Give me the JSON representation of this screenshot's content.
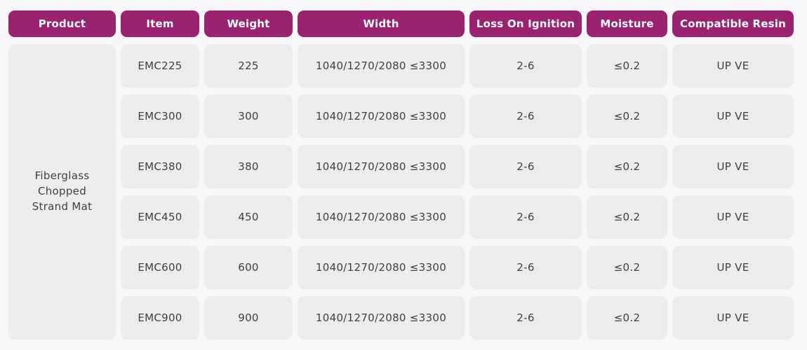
{
  "colors": {
    "page_bg": "#f7f7f9",
    "header_bg": "#9b2271",
    "header_text": "#ffffff",
    "cell_bg": "#ececec",
    "cell_text": "#414141"
  },
  "table": {
    "columns": [
      {
        "label": "Product"
      },
      {
        "label": "Item"
      },
      {
        "label": "Weight"
      },
      {
        "label": "Width"
      },
      {
        "label": "Loss On Ignition"
      },
      {
        "label": "Moisture"
      },
      {
        "label": "Compatible Resin"
      }
    ],
    "product_group": "Fiberglass Chopped Strand Mat",
    "rows": [
      {
        "item": "EMC225",
        "weight": "225",
        "width": "1040/1270/2080 ≤3300",
        "loss": "2-6",
        "moisture": "≤0.2",
        "resin": "UP VE"
      },
      {
        "item": "EMC300",
        "weight": "300",
        "width": "1040/1270/2080 ≤3300",
        "loss": "2-6",
        "moisture": "≤0.2",
        "resin": "UP VE"
      },
      {
        "item": "EMC380",
        "weight": "380",
        "width": "1040/1270/2080 ≤3300",
        "loss": "2-6",
        "moisture": "≤0.2",
        "resin": "UP VE"
      },
      {
        "item": "EMC450",
        "weight": "450",
        "width": "1040/1270/2080 ≤3300",
        "loss": "2-6",
        "moisture": "≤0.2",
        "resin": "UP VE"
      },
      {
        "item": "EMC600",
        "weight": "600",
        "width": "1040/1270/2080 ≤3300",
        "loss": "2-6",
        "moisture": "≤0.2",
        "resin": "UP VE"
      },
      {
        "item": "EMC900",
        "weight": "900",
        "width": "1040/1270/2080 ≤3300",
        "loss": "2-6",
        "moisture": "≤0.2",
        "resin": "UP VE"
      }
    ]
  }
}
